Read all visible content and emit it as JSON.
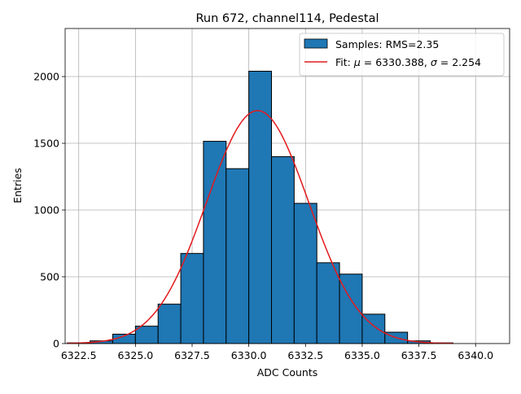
{
  "chart_data": {
    "type": "bar",
    "title": "Run 672, channel114, Pedestal",
    "xlabel": "ADC Counts",
    "ylabel": "Entries",
    "xlim": [
      6321.9,
      6341.5
    ],
    "ylim": [
      0,
      2360
    ],
    "xticks": [
      6322.5,
      6325.0,
      6327.5,
      6330.0,
      6332.5,
      6335.0,
      6337.5,
      6340.0
    ],
    "xtick_labels": [
      "6322.5",
      "6325.0",
      "6327.5",
      "6330.0",
      "6332.5",
      "6335.0",
      "6337.5",
      "6340.0"
    ],
    "yticks": [
      0,
      500,
      1000,
      1500,
      2000
    ],
    "ytick_labels": [
      "0",
      "500",
      "1000",
      "1500",
      "2000"
    ],
    "grid": true,
    "legend_position": "top-right",
    "histogram": {
      "name": "Samples: RMS=2.35",
      "color": "#1f77b4",
      "edge_color": "#000000",
      "bin_edges": [
        6322,
        6323,
        6324,
        6325,
        6326,
        6327,
        6328,
        6329,
        6330,
        6331,
        6332,
        6333,
        6334,
        6335,
        6336,
        6337,
        6338,
        6339,
        6340,
        6341
      ],
      "counts": [
        5,
        20,
        70,
        130,
        295,
        675,
        1515,
        1310,
        2040,
        1400,
        1050,
        605,
        520,
        220,
        85,
        20,
        5,
        0,
        0
      ]
    },
    "fit": {
      "name_prefix": "Fit: ",
      "mu_value": "6330.388",
      "sigma_value": "2.254",
      "color": "#e31a1c",
      "mu": 6330.388,
      "sigma": 2.254,
      "amplitude": 1745,
      "x_range": [
        6322,
        6339
      ]
    }
  }
}
